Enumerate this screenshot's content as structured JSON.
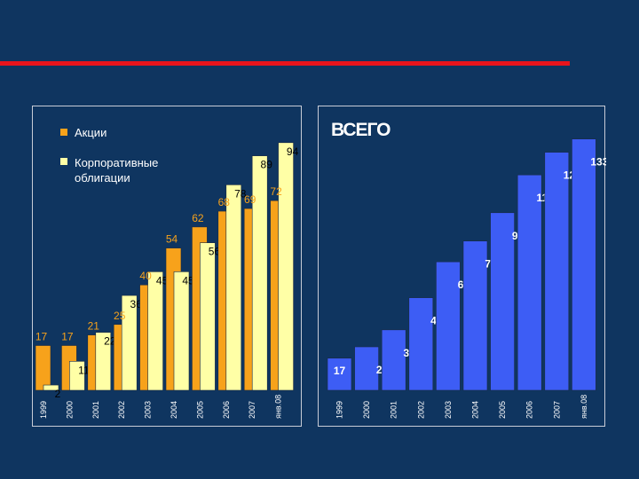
{
  "chart_data": [
    {
      "type": "bar",
      "categories": [
        "1999",
        "2000",
        "2001",
        "2002",
        "2003",
        "2004",
        "2005",
        "2006",
        "2007",
        "янв.08"
      ],
      "series": [
        {
          "name": "Акции",
          "values": [
            17,
            17,
            21,
            25,
            40,
            54,
            62,
            68,
            69,
            72
          ],
          "color": "#f7a21b"
        },
        {
          "name": "Корпоративные облигации",
          "values": [
            2,
            11,
            22,
            36,
            45,
            45,
            56,
            78,
            89,
            94
          ],
          "color": "#ffffa6"
        }
      ],
      "ylim": [
        0,
        100
      ],
      "legend": "top-left"
    },
    {
      "type": "bar",
      "title": "ВСЕГО",
      "categories": [
        "1999",
        "2000",
        "2001",
        "2002",
        "2003",
        "2004",
        "2005",
        "2006",
        "2007",
        "янв.08"
      ],
      "series": [
        {
          "values": [
            17,
            23,
            32,
            49,
            68,
            79,
            94,
            114,
            126,
            133
          ],
          "color": "#3d5df5"
        }
      ],
      "ylim": [
        0,
        140
      ]
    }
  ]
}
